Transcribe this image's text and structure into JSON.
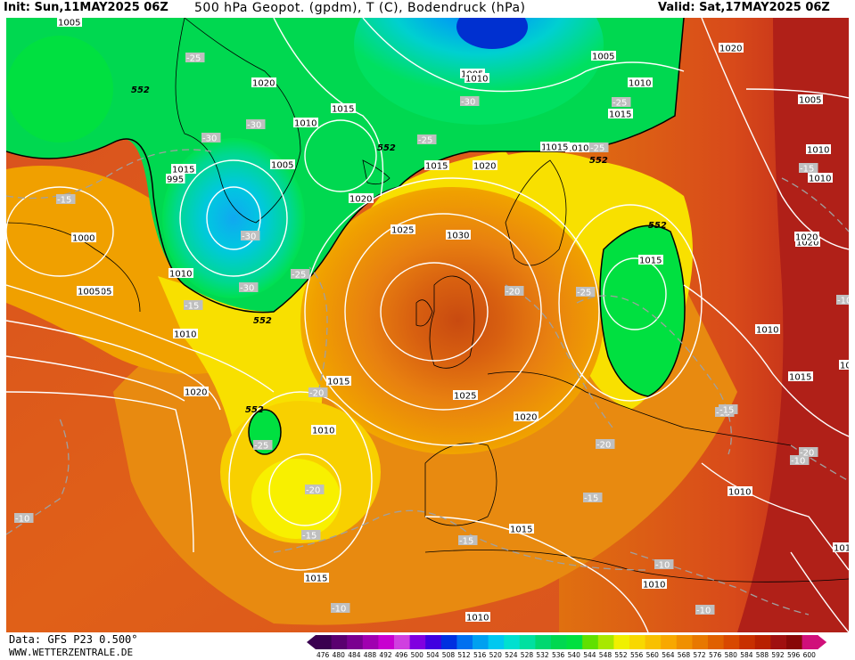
{
  "header": {
    "init": "Init: Sun,11MAY2025 06Z",
    "title": "500 hPa Geopot. (gpdm), T (C), Bodendruck (hPa)",
    "valid": "Valid: Sat,17MAY2025 06Z"
  },
  "footer": {
    "data_source": "Data: GFS P23 0.500°",
    "website": "WWW.WETTERZENTRALE.DE"
  },
  "legend": {
    "values": [
      "476",
      "480",
      "484",
      "488",
      "492",
      "496",
      "500",
      "504",
      "508",
      "512",
      "516",
      "520",
      "524",
      "528",
      "532",
      "536",
      "540",
      "544",
      "548",
      "552",
      "556",
      "560",
      "564",
      "568",
      "572",
      "576",
      "580",
      "584",
      "588",
      "592",
      "596",
      "600"
    ],
    "colors": [
      "#3a0050",
      "#5a0070",
      "#7a0090",
      "#a000b0",
      "#c800d0",
      "#d040e0",
      "#8000e0",
      "#4000e0",
      "#0030e0",
      "#0070f0",
      "#00a0f0",
      "#00c8f0",
      "#00e0d0",
      "#00e0a0",
      "#00d870",
      "#00d850",
      "#00e040",
      "#60e000",
      "#a8e800",
      "#f0f000",
      "#f8d800",
      "#f8c000",
      "#f8a800",
      "#f09000",
      "#e87800",
      "#e06000",
      "#d84800",
      "#c83000",
      "#b82000",
      "#a01010",
      "#880808",
      "#d0107a"
    ]
  },
  "pressure_labels": [
    "1005",
    "1020",
    "1010",
    "1015",
    "1010",
    "1015",
    "1005",
    "1020",
    "1025",
    "1030",
    "1025",
    "1020",
    "1015",
    "1010",
    "1020",
    "1015",
    "1010",
    "1005",
    "1000",
    "1010",
    "1005",
    "1015",
    "1010",
    "1020",
    "1010",
    "1015",
    "1015",
    "1010",
    "1010",
    "1015",
    "1020",
    "1025",
    "1015",
    "1005",
    "1010",
    "1015",
    "1020",
    "1010",
    "1015",
    "1010",
    "1010",
    "1020",
    "1005",
    "1010",
    "995",
    "1005"
  ],
  "temp_labels": [
    "-25",
    "-30",
    "-30",
    "-30",
    "-25",
    "-30",
    "-25",
    "-25",
    "-30",
    "-15",
    "-15",
    "-15",
    "-20",
    "-25",
    "-20",
    "-25",
    "-20",
    "-15",
    "-15",
    "-15",
    "-10",
    "-10",
    "-10",
    "-10",
    "-10",
    "-15",
    "-10",
    "-20",
    "-15",
    "-20",
    "-25"
  ],
  "height_labels": [
    "552",
    "552",
    "552",
    "552",
    "552",
    "552"
  ]
}
